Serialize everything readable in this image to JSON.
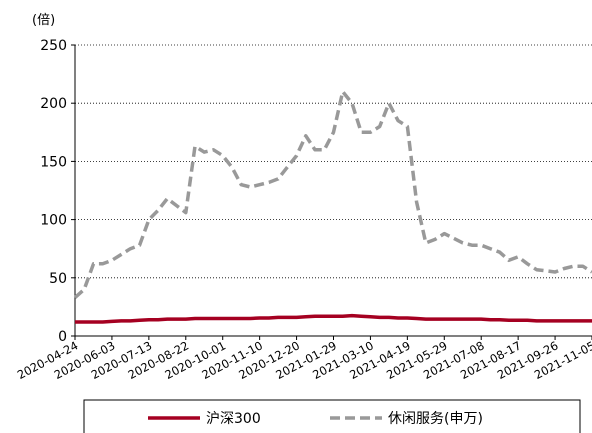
{
  "chart_data": {
    "type": "line",
    "unit_label": "(倍)",
    "categories": [
      "2020-04-24",
      null,
      null,
      null,
      "2020-06-03",
      null,
      null,
      null,
      "2020-07-13",
      null,
      null,
      null,
      "2020-08-22",
      null,
      null,
      null,
      "2020-10-01",
      null,
      null,
      null,
      "2020-11-10",
      null,
      null,
      null,
      "2020-12-20",
      null,
      null,
      null,
      "2021-01-29",
      null,
      null,
      null,
      "2021-03-10",
      null,
      null,
      null,
      "2021-04-19",
      null,
      null,
      null,
      "2021-05-29",
      null,
      null,
      null,
      "2021-07-08",
      null,
      null,
      null,
      "2021-08-17",
      null,
      null,
      null,
      "2021-09-26",
      null,
      null,
      null,
      "2021-11-05"
    ],
    "series": [
      {
        "name": "沪深300",
        "color": "#a50021",
        "dash": false,
        "values": [
          12,
          12,
          12,
          12,
          12.5,
          13,
          13,
          13.5,
          14,
          14,
          14.5,
          14.5,
          14.5,
          15,
          15,
          15,
          15,
          15,
          15,
          15,
          15.5,
          15.5,
          16,
          16,
          16,
          16.5,
          17,
          17,
          17,
          17,
          17.5,
          17,
          16.5,
          16,
          16,
          15.5,
          15.5,
          15,
          14.5,
          14.5,
          14.5,
          14.5,
          14.5,
          14.5,
          14.5,
          14,
          14,
          13.5,
          13.5,
          13.5,
          13,
          13,
          13,
          13,
          13,
          13,
          13
        ]
      },
      {
        "name": "休闲服务(申万)",
        "color": "#999999",
        "dash": true,
        "values": [
          33,
          40,
          62,
          62,
          65,
          70,
          75,
          78,
          100,
          108,
          118,
          112,
          106,
          163,
          158,
          160,
          155,
          145,
          130,
          128,
          130,
          132,
          135,
          145,
          155,
          172,
          160,
          160,
          175,
          210,
          200,
          175,
          175,
          180,
          200,
          185,
          180,
          115,
          80,
          83,
          88,
          84,
          80,
          78,
          78,
          75,
          72,
          65,
          68,
          62,
          57,
          56,
          55,
          58,
          60,
          60,
          55
        ]
      }
    ],
    "ylim": [
      0,
      250
    ],
    "yticks": [
      0,
      50,
      100,
      150,
      200,
      250
    ],
    "grid": true
  }
}
